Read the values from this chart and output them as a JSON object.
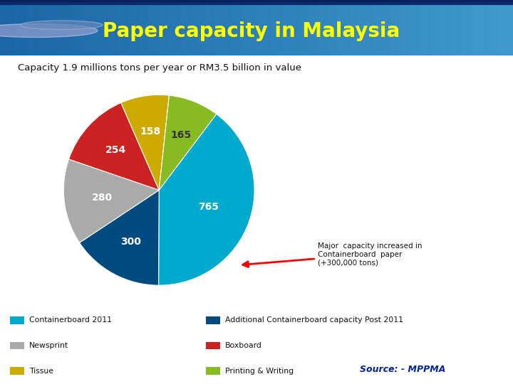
{
  "title": "Paper capacity in Malaysia",
  "subtitle": "Capacity 1.9 millions tons per year or RM3.5 billion in value",
  "title_bg_color_left": "#1155a0",
  "title_bg_color_right": "#2288cc",
  "title_text_color": "#ffff00",
  "bg_color": "#ffffff",
  "slices": [
    765,
    300,
    280,
    254,
    158,
    165
  ],
  "labels": [
    "765",
    "300",
    "280",
    "254",
    "158",
    "165"
  ],
  "colors": [
    "#00aacc",
    "#004a80",
    "#aaaaaa",
    "#cc2222",
    "#ccaa00",
    "#88bb22"
  ],
  "startangle": 53,
  "legend_items": [
    {
      "label": "Containerboard 2011",
      "color": "#00aacc"
    },
    {
      "label": "Newsprint",
      "color": "#aaaaaa"
    },
    {
      "label": "Tissue",
      "color": "#ccaa00"
    },
    {
      "label": "Additional Containerboard capacity Post 2011",
      "color": "#004a80"
    },
    {
      "label": "Boxboard",
      "color": "#cc2222"
    },
    {
      "label": "Printing & Writing",
      "color": "#88bb22"
    }
  ],
  "annotation_text": "Major  capacity increased in\nContainerboard  paper\n(+300,000 tons)",
  "source_text": "Source: - MPPMA",
  "label_colors": [
    "white",
    "white",
    "white",
    "white",
    "white",
    "#333333"
  ],
  "label_radii": [
    0.55,
    0.62,
    0.6,
    0.62,
    0.62,
    0.62
  ]
}
